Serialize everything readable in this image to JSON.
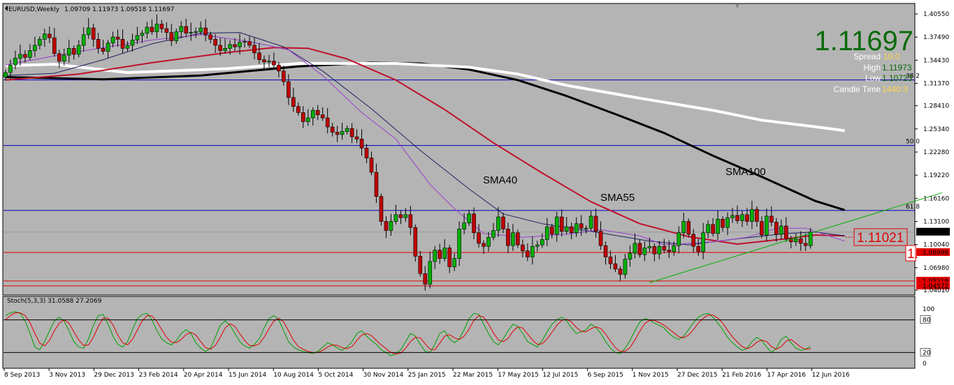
{
  "chart_data": {
    "type": "candlestick",
    "title": "EURUSD,Weekly",
    "ohlc_header": "1.09709 1.11973 1.09518 1.11697",
    "y_ticks": [
      "1.40550",
      "1.37490",
      "1.34430",
      "1.31370",
      "1.28410",
      "1.25340",
      "1.22280",
      "1.19220",
      "1.16160",
      "1.13100",
      "1.10040",
      "1.06980",
      "1.04010"
    ],
    "x_ticks": [
      "8 Sep 2013",
      "3 Nov 2013",
      "29 Dec 2013",
      "23 Feb 2014",
      "20 Apr 2014",
      "15 Jun 2014",
      "10 Aug 2014",
      "5 Oct 2014",
      "30 Nov 2014",
      "25 Jan 2015",
      "22 Mar 2015",
      "17 May 2015",
      "12 Jul 2015",
      "6 Sep 2015",
      "1 Nov 2015",
      "27 Dec 2015",
      "21 Feb 2016",
      "17 Apr 2016",
      "12 Jun 2016"
    ],
    "ylim": [
      1.0401,
      1.4055
    ],
    "current_price": "1.11697",
    "info": {
      "spread_label": "Spread",
      "spread": "10.0",
      "high_label": "High",
      "high": "1.11973",
      "low_label": "Low",
      "low": "1.10723",
      "candle_label": "Candle Time",
      "candle": "1440:3"
    },
    "hlines": [
      {
        "value": 1.3182,
        "label": "38.2",
        "color": "#0000c0"
      },
      {
        "value": 1.2315,
        "label": "50.0",
        "color": "#0000c0"
      },
      {
        "value": 1.1455,
        "label": "61.8",
        "color": "#0000c0"
      },
      {
        "value": 1.08998,
        "label": "1.08998",
        "color": "#e00000"
      },
      {
        "value": 1.05219,
        "label": "1.05219",
        "color": "#e00000"
      },
      {
        "value": 1.04572,
        "label": "1.04572",
        "color": "#e00000"
      }
    ],
    "price_tag": "1.11697",
    "alert_tag": "1.11021",
    "alert_tag_partial": "1.",
    "annotations": [
      "SMA40",
      "SMA55",
      "SMA100"
    ],
    "closes": [
      1.328,
      1.338,
      1.347,
      1.352,
      1.348,
      1.357,
      1.364,
      1.372,
      1.379,
      1.374,
      1.353,
      1.343,
      1.351,
      1.36,
      1.352,
      1.364,
      1.378,
      1.387,
      1.372,
      1.36,
      1.356,
      1.367,
      1.375,
      1.372,
      1.36,
      1.364,
      1.371,
      1.377,
      1.38,
      1.388,
      1.382,
      1.392,
      1.386,
      1.381,
      1.37,
      1.382,
      1.389,
      1.38,
      1.381,
      1.382,
      1.387,
      1.378,
      1.372,
      1.364,
      1.357,
      1.36,
      1.365,
      1.362,
      1.368,
      1.369,
      1.364,
      1.354,
      1.345,
      1.342,
      1.343,
      1.338,
      1.33,
      1.316,
      1.295,
      1.283,
      1.275,
      1.263,
      1.268,
      1.278,
      1.272,
      1.268,
      1.256,
      1.249,
      1.246,
      1.25,
      1.254,
      1.243,
      1.24,
      1.228,
      1.215,
      1.196,
      1.164,
      1.131,
      1.119,
      1.131,
      1.14,
      1.136,
      1.14,
      1.123,
      1.085,
      1.062,
      1.048,
      1.078,
      1.093,
      1.082,
      1.096,
      1.071,
      1.082,
      1.121,
      1.129,
      1.141,
      1.116,
      1.102,
      1.098,
      1.11,
      1.119,
      1.137,
      1.121,
      1.099,
      1.116,
      1.1,
      1.092,
      1.084,
      1.098,
      1.1,
      1.107,
      1.124,
      1.114,
      1.137,
      1.118,
      1.124,
      1.116,
      1.128,
      1.122,
      1.122,
      1.138,
      1.118,
      1.099,
      1.084,
      1.075,
      1.068,
      1.061,
      1.081,
      1.089,
      1.102,
      1.087,
      1.096,
      1.098,
      1.088,
      1.098,
      1.093,
      1.091,
      1.099,
      1.116,
      1.131,
      1.114,
      1.098,
      1.091,
      1.116,
      1.127,
      1.115,
      1.134,
      1.123,
      1.136,
      1.139,
      1.132,
      1.14,
      1.131,
      1.147,
      1.131,
      1.113,
      1.138,
      1.13,
      1.114,
      1.125,
      1.108,
      1.104,
      1.108,
      1.102,
      1.099,
      1.117
    ],
    "sma": [
      {
        "name": "SMA100",
        "color": "#000000",
        "width": 3,
        "pts": [
          [
            0,
            1.322
          ],
          [
            20,
            1.319
          ],
          [
            40,
            1.324
          ],
          [
            60,
            1.336
          ],
          [
            75,
            1.341
          ],
          [
            85,
            1.34
          ],
          [
            95,
            1.332
          ],
          [
            105,
            1.318
          ],
          [
            115,
            1.297
          ],
          [
            125,
            1.273
          ],
          [
            135,
            1.248
          ],
          [
            145,
            1.218
          ],
          [
            155,
            1.19
          ],
          [
            166,
            1.158
          ],
          [
            172,
            1.146
          ]
        ]
      },
      {
        "name": "SMA200",
        "color": "#ffffff",
        "width": 4,
        "pts": [
          [
            0,
            1.337
          ],
          [
            10,
            1.339
          ],
          [
            25,
            1.328
          ],
          [
            45,
            1.333
          ],
          [
            60,
            1.34
          ],
          [
            80,
            1.34
          ],
          [
            95,
            1.335
          ],
          [
            105,
            1.326
          ],
          [
            115,
            1.311
          ],
          [
            130,
            1.294
          ],
          [
            145,
            1.278
          ],
          [
            155,
            1.265
          ],
          [
            165,
            1.257
          ],
          [
            172,
            1.251
          ]
        ]
      },
      {
        "name": "SMA55",
        "color": "#c0102a",
        "width": 2,
        "pts": [
          [
            0,
            1.318
          ],
          [
            15,
            1.326
          ],
          [
            30,
            1.341
          ],
          [
            45,
            1.354
          ],
          [
            55,
            1.361
          ],
          [
            62,
            1.36
          ],
          [
            70,
            1.346
          ],
          [
            80,
            1.318
          ],
          [
            90,
            1.279
          ],
          [
            100,
            1.235
          ],
          [
            110,
            1.195
          ],
          [
            120,
            1.157
          ],
          [
            130,
            1.128
          ],
          [
            140,
            1.111
          ],
          [
            150,
            1.101
          ],
          [
            160,
            1.108
          ],
          [
            166,
            1.113
          ],
          [
            172,
            1.112
          ]
        ]
      },
      {
        "name": "SMA40",
        "color": "#202060",
        "width": 1,
        "pts": [
          [
            0,
            1.324
          ],
          [
            10,
            1.327
          ],
          [
            20,
            1.345
          ],
          [
            30,
            1.366
          ],
          [
            40,
            1.38
          ],
          [
            48,
            1.381
          ],
          [
            57,
            1.362
          ],
          [
            65,
            1.33
          ],
          [
            75,
            1.28
          ],
          [
            85,
            1.225
          ],
          [
            95,
            1.174
          ],
          [
            102,
            1.141
          ],
          [
            110,
            1.128
          ],
          [
            120,
            1.118
          ],
          [
            132,
            1.105
          ],
          [
            140,
            1.1
          ],
          [
            150,
            1.108
          ],
          [
            160,
            1.115
          ],
          [
            166,
            1.117
          ],
          [
            172,
            1.112
          ]
        ]
      },
      {
        "name": "SMA21",
        "color": "#9a3fd0",
        "width": 1,
        "pts": [
          [
            0,
            1.338
          ],
          [
            10,
            1.35
          ],
          [
            20,
            1.361
          ],
          [
            30,
            1.371
          ],
          [
            40,
            1.378
          ],
          [
            50,
            1.369
          ],
          [
            58,
            1.358
          ],
          [
            65,
            1.324
          ],
          [
            73,
            1.275
          ],
          [
            80,
            1.24
          ],
          [
            87,
            1.18
          ],
          [
            92,
            1.148
          ],
          [
            98,
            1.115
          ],
          [
            106,
            1.11
          ],
          [
            115,
            1.114
          ],
          [
            122,
            1.12
          ],
          [
            130,
            1.112
          ],
          [
            135,
            1.1
          ],
          [
            145,
            1.104
          ],
          [
            152,
            1.11
          ],
          [
            158,
            1.122
          ],
          [
            164,
            1.122
          ],
          [
            172,
            1.105
          ]
        ]
      }
    ],
    "trendline": {
      "from": [
        132,
        1.05
      ],
      "to": [
        192,
        1.169
      ],
      "color": "#00b000"
    },
    "stoch_label": "Stoch(5,3,3) 31.0588 27.2069",
    "stoch_levels": [
      "100",
      "80",
      "20",
      "0"
    ],
    "stoch_main": [
      88,
      93,
      95,
      92,
      78,
      55,
      30,
      25,
      40,
      60,
      78,
      85,
      78,
      60,
      40,
      30,
      28,
      45,
      70,
      88,
      90,
      72,
      50,
      35,
      30,
      40,
      62,
      82,
      90,
      92,
      80,
      60,
      45,
      38,
      34,
      42,
      55,
      62,
      55,
      38,
      28,
      22,
      28,
      48,
      70,
      78,
      70,
      55,
      40,
      32,
      28,
      35,
      45,
      65,
      82,
      88,
      80,
      60,
      40,
      30,
      25,
      22,
      20,
      18,
      22,
      30,
      38,
      34,
      28,
      24,
      30,
      40,
      55,
      60,
      50,
      42,
      35,
      25,
      20,
      14,
      18,
      25,
      40,
      55,
      50,
      35,
      22,
      20,
      35,
      55,
      60,
      45,
      38,
      45,
      62,
      82,
      92,
      90,
      72,
      55,
      40,
      34,
      45,
      60,
      72,
      68,
      55,
      40,
      35,
      30,
      42,
      58,
      72,
      80,
      85,
      78,
      65,
      55,
      58,
      62,
      72,
      66,
      55,
      40,
      28,
      20,
      18,
      28,
      42,
      60,
      76,
      82,
      80,
      74,
      70,
      65,
      55,
      48,
      44,
      50,
      62,
      75,
      85,
      90,
      92,
      85,
      74,
      62,
      48,
      38,
      30,
      24,
      28,
      40,
      48,
      42,
      30,
      20,
      28,
      44,
      50,
      38,
      28,
      24,
      26,
      31
    ],
    "stoch_signal": [
      80,
      88,
      93,
      93,
      88,
      75,
      55,
      37,
      32,
      42,
      60,
      74,
      80,
      74,
      58,
      43,
      33,
      34,
      48,
      68,
      83,
      83,
      71,
      52,
      38,
      34,
      44,
      61,
      78,
      88,
      87,
      77,
      62,
      48,
      39,
      38,
      44,
      53,
      57,
      52,
      40,
      29,
      26,
      33,
      48,
      65,
      73,
      68,
      55,
      42,
      33,
      32,
      36,
      48,
      64,
      78,
      83,
      76,
      60,
      43,
      31,
      26,
      22,
      20,
      20,
      24,
      30,
      34,
      33,
      29,
      27,
      31,
      42,
      52,
      55,
      51,
      42,
      34,
      27,
      20,
      17,
      19,
      28,
      40,
      48,
      47,
      36,
      26,
      25,
      37,
      50,
      53,
      47,
      44,
      50,
      63,
      79,
      88,
      85,
      72,
      56,
      43,
      40,
      46,
      59,
      67,
      65,
      54,
      43,
      35,
      36,
      45,
      57,
      70,
      79,
      81,
      76,
      66,
      59,
      58,
      64,
      67,
      64,
      54,
      41,
      29,
      22,
      22,
      29,
      43,
      59,
      73,
      79,
      79,
      75,
      70,
      63,
      56,
      49,
      47,
      52,
      62,
      74,
      83,
      89,
      89,
      83,
      74,
      61,
      49,
      39,
      31,
      27,
      31,
      39,
      43,
      40,
      31,
      26,
      31,
      41,
      44,
      37,
      30,
      26,
      27
    ]
  }
}
